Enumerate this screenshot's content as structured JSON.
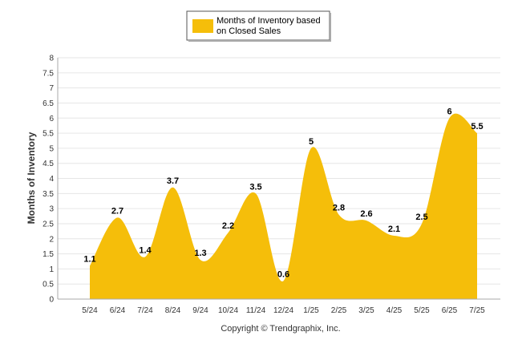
{
  "chart_data": {
    "type": "area",
    "title": "",
    "xlabel": "",
    "ylabel": "Months of Inventory",
    "ylim": [
      0,
      8
    ],
    "yticks": [
      "0",
      "0.5",
      "1",
      "1.5",
      "2",
      "2.5",
      "3",
      "3.5",
      "4",
      "4.5",
      "5",
      "5.5",
      "6",
      "6.5",
      "7",
      "7.5",
      "8"
    ],
    "grid": true,
    "legend_placement": "top-center",
    "categories": [
      "5/24",
      "6/24",
      "7/24",
      "8/24",
      "9/24",
      "10/24",
      "11/24",
      "12/24",
      "1/25",
      "2/25",
      "3/25",
      "4/25",
      "5/25",
      "6/25",
      "7/25"
    ],
    "series": [
      {
        "name": "Months of Inventory based on Closed Sales",
        "legend_lines": [
          "Months of Inventory based",
          "on Closed Sales"
        ],
        "color": "#F5BE0A",
        "values": [
          1.1,
          2.7,
          1.4,
          3.7,
          1.3,
          2.2,
          3.5,
          0.6,
          5,
          2.8,
          2.6,
          2.1,
          2.5,
          6,
          5.5
        ],
        "data_labels": [
          "1.1",
          "2.7",
          "1.4",
          "3.7",
          "1.3",
          "2.2",
          "3.5",
          "0.6",
          "5",
          "2.8",
          "2.6",
          "2.1",
          "2.5",
          "6",
          "5.5"
        ]
      }
    ],
    "footer": "Copyright © Trendgraphix, Inc."
  }
}
